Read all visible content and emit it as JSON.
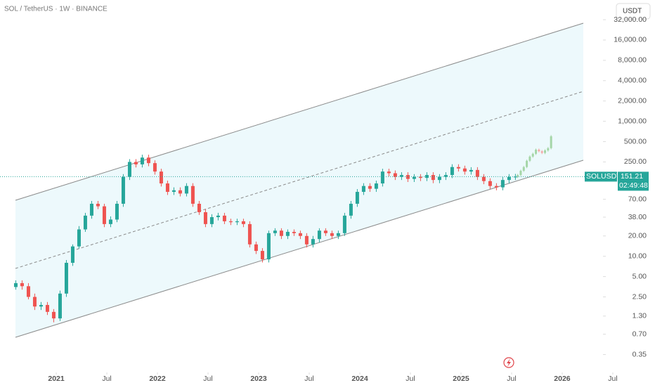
{
  "chart_data": {
    "type": "candlestick",
    "title": "SOL / TetherUS · 1W · BINANCE",
    "currency": "USDT",
    "symbol": "SOLUSDT",
    "countdown": "02:49:48",
    "log_scale": true,
    "up_color": "#26a69a",
    "down_color": "#ef5350",
    "forecast_up_color": "#a5d6a7",
    "forecast_down_color": "#f4a9a8",
    "xlim": [
      2020.444,
      2026.403
    ],
    "ylim": [
      0.19,
      62700
    ],
    "xticks": [
      2021,
      {
        "value": 2021.5,
        "label": "Jul"
      },
      2022,
      {
        "value": 2022.5,
        "label": "Jul"
      },
      2023,
      {
        "value": 2023.5,
        "label": "Jul"
      },
      2024,
      {
        "value": 2024.5,
        "label": "Jul"
      },
      2025,
      {
        "value": 2025.5,
        "label": "Jul"
      },
      2026,
      {
        "value": 2026.5,
        "label": "Jul"
      }
    ],
    "yticks": [
      0.35,
      {
        "value": 0.7,
        "label": "0.70"
      },
      {
        "value": 1.3,
        "label": "1.30"
      },
      {
        "value": 2.5,
        "label": "2.50"
      },
      {
        "value": 5,
        "label": "5.00"
      },
      {
        "value": 10,
        "label": "10.00"
      },
      {
        "value": 20,
        "label": "20.00"
      },
      {
        "value": 38,
        "label": "38.00"
      },
      {
        "value": 70,
        "label": "70.00"
      },
      {
        "value": 250,
        "label": "250.00"
      },
      {
        "value": 500,
        "label": "500.00"
      },
      {
        "value": 1000,
        "label": "1,000.00"
      },
      {
        "value": 2000,
        "label": "2,000.00"
      },
      {
        "value": 4000,
        "label": "4,000.00"
      },
      {
        "value": 8000,
        "label": "8,000.00"
      },
      {
        "value": 16000,
        "label": "16,000.00"
      },
      {
        "value": 32000,
        "label": "32,000.00"
      }
    ],
    "candles": {
      "x": [
        2020.6,
        2020.6625,
        2020.725,
        2020.7875,
        2020.85,
        2020.9125,
        2020.975,
        2021.0375,
        2021.1,
        2021.1625,
        2021.225,
        2021.2875,
        2021.35,
        2021.4125,
        2021.475,
        2021.5375,
        2021.6,
        2021.6625,
        2021.725,
        2021.7875,
        2021.85,
        2021.9125,
        2021.975,
        2022.0375,
        2022.1,
        2022.1625,
        2022.225,
        2022.2875,
        2022.35,
        2022.4125,
        2022.475,
        2022.5375,
        2022.6,
        2022.6625,
        2022.725,
        2022.7875,
        2022.85,
        2022.9125,
        2022.975,
        2023.0375,
        2023.1,
        2023.1625,
        2023.225,
        2023.2875,
        2023.35,
        2023.4125,
        2023.475,
        2023.5375,
        2023.6,
        2023.6625,
        2023.725,
        2023.7875,
        2023.85,
        2023.9125,
        2023.975,
        2024.0375,
        2024.1,
        2024.1625,
        2024.225,
        2024.2875,
        2024.35,
        2024.4125,
        2024.475,
        2024.5375,
        2024.6,
        2024.6625,
        2024.725,
        2024.7875,
        2024.85,
        2024.9125,
        2024.975,
        2025.0375,
        2025.1,
        2025.1625,
        2025.225,
        2025.2875,
        2025.35,
        2025.4125,
        2025.475,
        2025.5375
      ],
      "open": [
        3.5,
        4.0,
        3.6,
        2.5,
        1.8,
        1.9,
        1.5,
        1.2,
        2.8,
        8,
        14,
        25,
        40,
        60,
        55,
        30,
        35,
        60,
        150,
        250,
        230,
        290,
        240,
        180,
        120,
        90,
        95,
        85,
        110,
        60,
        45,
        30,
        38,
        40,
        33,
        32,
        33,
        30,
        15,
        12,
        9,
        22,
        24,
        20,
        23,
        22,
        20,
        15,
        18,
        24,
        22,
        20,
        22,
        40,
        60,
        90,
        110,
        100,
        120,
        180,
        170,
        150,
        160,
        140,
        150,
        145,
        160,
        135,
        150,
        160,
        210,
        200,
        180,
        190,
        150,
        130,
        110,
        105,
        135,
        150
      ],
      "high": [
        4.4,
        4.4,
        4.0,
        2.8,
        2.1,
        2.1,
        1.65,
        3.1,
        8.8,
        15,
        28,
        44,
        66,
        66,
        60,
        39,
        66,
        165,
        275,
        275,
        320,
        320,
        264,
        198,
        132,
        105,
        105,
        121,
        121,
        66,
        50,
        42,
        44,
        44,
        36,
        36,
        36,
        33,
        16.5,
        13.2,
        24,
        26,
        26,
        25,
        25,
        24,
        22,
        20,
        26,
        26,
        24,
        24,
        44,
        66,
        99,
        121,
        121,
        132,
        198,
        198,
        187,
        176,
        176,
        165,
        165,
        176,
        176,
        165,
        176,
        231,
        231,
        220,
        209,
        209,
        165,
        143,
        121,
        149,
        165,
        166
      ],
      "low": [
        3.2,
        3.2,
        2.3,
        1.6,
        1.6,
        1.35,
        1.05,
        1.1,
        2.5,
        7.2,
        13,
        23,
        36,
        50,
        27,
        27,
        32,
        54,
        135,
        207,
        207,
        216,
        162,
        108,
        81,
        81,
        77,
        77,
        54,
        41,
        27,
        27,
        34,
        30,
        29,
        29,
        27,
        13.5,
        10.8,
        8.1,
        8.1,
        20,
        18,
        18,
        20,
        18,
        13.5,
        13.5,
        16,
        20,
        18,
        18,
        20,
        36,
        54,
        81,
        90,
        90,
        108,
        153,
        135,
        135,
        126,
        126,
        130,
        130,
        121,
        121,
        135,
        144,
        180,
        162,
        162,
        135,
        117,
        99,
        95,
        95,
        121,
        135
      ],
      "close": [
        4.0,
        3.6,
        2.5,
        1.8,
        1.9,
        1.5,
        1.2,
        2.8,
        8,
        14,
        25,
        40,
        60,
        55,
        30,
        35,
        60,
        150,
        250,
        230,
        290,
        240,
        180,
        120,
        90,
        95,
        85,
        110,
        60,
        45,
        30,
        38,
        40,
        33,
        32,
        33,
        30,
        15,
        12,
        9,
        22,
        24,
        20,
        23,
        22,
        20,
        15,
        18,
        24,
        22,
        20,
        22,
        40,
        60,
        90,
        110,
        100,
        120,
        180,
        170,
        150,
        160,
        140,
        150,
        145,
        160,
        135,
        150,
        160,
        210,
        200,
        180,
        190,
        150,
        130,
        110,
        105,
        135,
        150,
        151.21
      ]
    },
    "forecast": {
      "x": [
        2025.56,
        2025.59,
        2025.62,
        2025.65,
        2025.68,
        2025.71,
        2025.74,
        2025.77,
        2025.8,
        2025.83,
        2025.86,
        2025.89
      ],
      "open": [
        151.21,
        160,
        185,
        210,
        260,
        300,
        330,
        380,
        360,
        340,
        370,
        400
      ],
      "high": [
        166,
        192,
        218,
        270,
        312,
        343,
        395,
        395,
        374,
        385,
        416,
        624
      ],
      "low": [
        145,
        154,
        178,
        202,
        250,
        288,
        317,
        346,
        326,
        326,
        355,
        384
      ],
      "close": [
        160,
        185,
        210,
        260,
        300,
        330,
        380,
        360,
        340,
        370,
        400,
        600
      ]
    }
  }
}
